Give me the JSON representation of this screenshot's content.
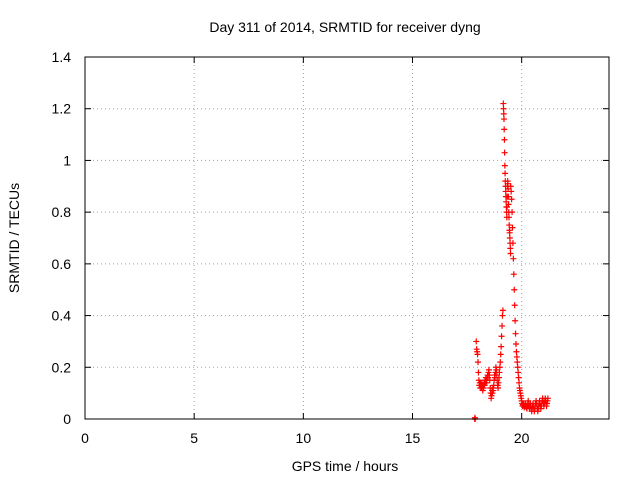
{
  "chart_data": {
    "type": "scatter",
    "title": "Day 311 of 2014, SRMTID for receiver dyng",
    "xlabel": "GPS time / hours",
    "ylabel": "SRMTID / TECUs",
    "xlim": [
      0,
      24
    ],
    "ylim": [
      0,
      1.4
    ],
    "xticks": [
      0,
      5,
      10,
      15,
      20
    ],
    "xtick_labels": [
      "0",
      "5",
      "10",
      "15",
      "20"
    ],
    "yticks": [
      0,
      0.2,
      0.4,
      0.6,
      0.8,
      1.0,
      1.2,
      1.4
    ],
    "ytick_labels": [
      "0",
      "0.2",
      "0.4",
      "0.6",
      "0.8",
      "1",
      "1.2",
      "1.4"
    ],
    "grid": true,
    "marker": "plus",
    "marker_color": "#ff0000",
    "series": [
      {
        "name": "SRMTID",
        "points": [
          [
            17.85,
            0.0
          ],
          [
            17.86,
            0.005
          ],
          [
            17.87,
            0.0
          ],
          [
            17.92,
            0.3
          ],
          [
            17.94,
            0.27
          ],
          [
            17.96,
            0.26
          ],
          [
            17.98,
            0.25
          ],
          [
            18.0,
            0.22
          ],
          [
            18.02,
            0.18
          ],
          [
            18.04,
            0.15
          ],
          [
            18.06,
            0.13
          ],
          [
            18.08,
            0.14
          ],
          [
            18.1,
            0.12
          ],
          [
            18.12,
            0.14
          ],
          [
            18.14,
            0.13
          ],
          [
            18.16,
            0.12
          ],
          [
            18.18,
            0.14
          ],
          [
            18.2,
            0.13
          ],
          [
            18.22,
            0.11
          ],
          [
            18.24,
            0.13
          ],
          [
            18.26,
            0.12
          ],
          [
            18.28,
            0.14
          ],
          [
            18.3,
            0.13
          ],
          [
            18.32,
            0.15
          ],
          [
            18.34,
            0.14
          ],
          [
            18.36,
            0.16
          ],
          [
            18.38,
            0.15
          ],
          [
            18.4,
            0.14
          ],
          [
            18.42,
            0.16
          ],
          [
            18.44,
            0.17
          ],
          [
            18.46,
            0.16
          ],
          [
            18.48,
            0.18
          ],
          [
            18.5,
            0.19
          ],
          [
            18.52,
            0.17
          ],
          [
            18.54,
            0.15
          ],
          [
            18.56,
            0.12
          ],
          [
            18.58,
            0.1
          ],
          [
            18.6,
            0.08
          ],
          [
            18.62,
            0.09
          ],
          [
            18.64,
            0.11
          ],
          [
            18.66,
            0.1
          ],
          [
            18.68,
            0.12
          ],
          [
            18.7,
            0.11
          ],
          [
            18.72,
            0.13
          ],
          [
            18.74,
            0.15
          ],
          [
            18.76,
            0.17
          ],
          [
            18.78,
            0.16
          ],
          [
            18.8,
            0.18
          ],
          [
            18.82,
            0.2
          ],
          [
            18.84,
            0.19
          ],
          [
            18.86,
            0.17
          ],
          [
            18.88,
            0.15
          ],
          [
            18.9,
            0.13
          ],
          [
            18.92,
            0.12
          ],
          [
            18.94,
            0.14
          ],
          [
            18.96,
            0.16
          ],
          [
            18.98,
            0.18
          ],
          [
            19.0,
            0.2
          ],
          [
            19.02,
            0.22
          ],
          [
            19.04,
            0.25
          ],
          [
            19.06,
            0.28
          ],
          [
            19.08,
            0.32
          ],
          [
            19.1,
            0.36
          ],
          [
            19.12,
            0.4
          ],
          [
            19.14,
            0.42
          ],
          [
            19.16,
            1.22
          ],
          [
            19.17,
            1.2
          ],
          [
            19.18,
            1.18
          ],
          [
            19.19,
            1.16
          ],
          [
            19.2,
            1.12
          ],
          [
            19.21,
            1.08
          ],
          [
            19.22,
            1.03
          ],
          [
            19.23,
            0.98
          ],
          [
            19.24,
            0.95
          ],
          [
            19.25,
            0.92
          ],
          [
            19.26,
            0.9
          ],
          [
            19.27,
            0.88
          ],
          [
            19.28,
            0.86
          ],
          [
            19.29,
            0.84
          ],
          [
            19.3,
            0.82
          ],
          [
            19.31,
            0.8
          ],
          [
            19.32,
            0.78
          ],
          [
            19.33,
            0.82
          ],
          [
            19.34,
            0.86
          ],
          [
            19.35,
            0.9
          ],
          [
            19.36,
            0.92
          ],
          [
            19.37,
            0.91
          ],
          [
            19.38,
            0.89
          ],
          [
            19.39,
            0.86
          ],
          [
            19.4,
            0.83
          ],
          [
            19.41,
            0.8
          ],
          [
            19.42,
            0.78
          ],
          [
            19.43,
            0.75
          ],
          [
            19.44,
            0.73
          ],
          [
            19.45,
            0.72
          ],
          [
            19.46,
            0.7
          ],
          [
            19.47,
            0.68
          ],
          [
            19.48,
            0.66
          ],
          [
            19.49,
            0.64
          ],
          [
            19.5,
            0.9
          ],
          [
            19.52,
            0.88
          ],
          [
            19.54,
            0.85
          ],
          [
            19.56,
            0.8
          ],
          [
            19.58,
            0.74
          ],
          [
            19.6,
            0.68
          ],
          [
            19.62,
            0.62
          ],
          [
            19.64,
            0.56
          ],
          [
            19.66,
            0.5
          ],
          [
            19.68,
            0.44
          ],
          [
            19.7,
            0.38
          ],
          [
            19.72,
            0.33
          ],
          [
            19.74,
            0.29
          ],
          [
            19.76,
            0.26
          ],
          [
            19.78,
            0.24
          ],
          [
            19.8,
            0.22
          ],
          [
            19.82,
            0.2
          ],
          [
            19.84,
            0.18
          ],
          [
            19.86,
            0.16
          ],
          [
            19.88,
            0.14
          ],
          [
            19.9,
            0.12
          ],
          [
            19.92,
            0.11
          ],
          [
            19.94,
            0.1
          ],
          [
            19.96,
            0.09
          ],
          [
            19.98,
            0.08
          ],
          [
            20.0,
            0.07
          ],
          [
            20.02,
            0.06
          ],
          [
            20.04,
            0.05
          ],
          [
            20.06,
            0.055
          ],
          [
            20.08,
            0.06
          ],
          [
            20.1,
            0.05
          ],
          [
            20.12,
            0.045
          ],
          [
            20.14,
            0.05
          ],
          [
            20.16,
            0.06
          ],
          [
            20.18,
            0.055
          ],
          [
            20.2,
            0.05
          ],
          [
            20.22,
            0.045
          ],
          [
            20.24,
            0.04
          ],
          [
            20.26,
            0.05
          ],
          [
            20.28,
            0.06
          ],
          [
            20.3,
            0.07
          ],
          [
            20.32,
            0.06
          ],
          [
            20.34,
            0.05
          ],
          [
            20.36,
            0.04
          ],
          [
            20.38,
            0.05
          ],
          [
            20.4,
            0.06
          ],
          [
            20.42,
            0.05
          ],
          [
            20.44,
            0.04
          ],
          [
            20.46,
            0.03
          ],
          [
            20.48,
            0.04
          ],
          [
            20.5,
            0.05
          ],
          [
            20.52,
            0.06
          ],
          [
            20.54,
            0.05
          ],
          [
            20.56,
            0.04
          ],
          [
            20.58,
            0.03
          ],
          [
            20.6,
            0.04
          ],
          [
            20.62,
            0.05
          ],
          [
            20.64,
            0.06
          ],
          [
            20.66,
            0.07
          ],
          [
            20.68,
            0.06
          ],
          [
            20.7,
            0.05
          ],
          [
            20.72,
            0.04
          ],
          [
            20.74,
            0.03
          ],
          [
            20.76,
            0.04
          ],
          [
            20.78,
            0.05
          ],
          [
            20.8,
            0.06
          ],
          [
            20.82,
            0.07
          ],
          [
            20.84,
            0.06
          ],
          [
            20.86,
            0.05
          ],
          [
            20.88,
            0.04
          ],
          [
            20.9,
            0.05
          ],
          [
            20.92,
            0.06
          ],
          [
            20.94,
            0.07
          ],
          [
            20.96,
            0.08
          ],
          [
            20.98,
            0.07
          ],
          [
            21.0,
            0.06
          ],
          [
            21.02,
            0.05
          ],
          [
            21.04,
            0.06
          ],
          [
            21.06,
            0.07
          ],
          [
            21.08,
            0.08
          ],
          [
            21.1,
            0.07
          ],
          [
            21.12,
            0.06
          ],
          [
            21.14,
            0.05
          ],
          [
            21.16,
            0.06
          ],
          [
            21.18,
            0.07
          ],
          [
            21.2,
            0.08
          ]
        ]
      }
    ]
  }
}
